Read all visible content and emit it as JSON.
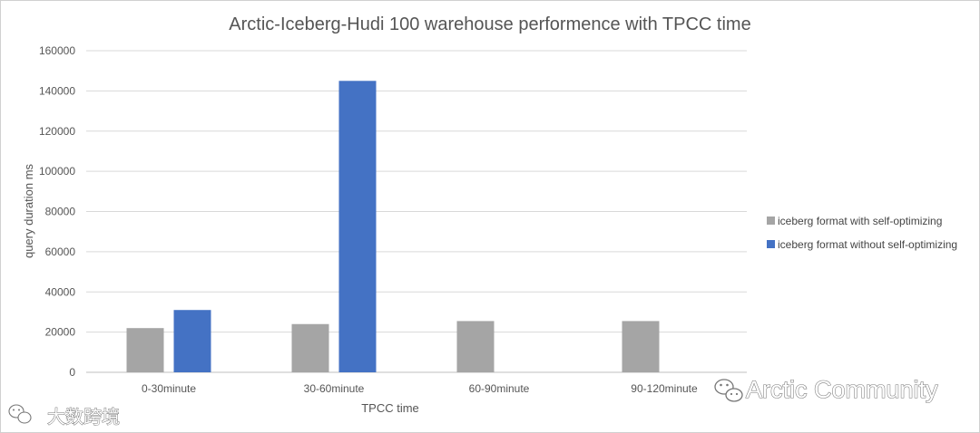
{
  "chart_data": {
    "type": "bar",
    "title": "Arctic-Iceberg-Hudi 100 warehouse performence with TPCC time",
    "xlabel": "TPCC time",
    "ylabel": "query duration ms",
    "ylim": [
      0,
      160000
    ],
    "yticks": [
      0,
      20000,
      40000,
      60000,
      80000,
      100000,
      120000,
      140000,
      160000
    ],
    "grid": true,
    "legend_position": "right",
    "categories": [
      "0-30minute",
      "30-60minute",
      "60-90minute",
      "90-120minute"
    ],
    "series": [
      {
        "name": "iceberg format with self-optimizing",
        "color": "#a5a5a5",
        "values": [
          22000,
          24000,
          25500,
          25500
        ]
      },
      {
        "name": "iceberg format without self-optimizing",
        "color": "#4472c4",
        "values": [
          31000,
          145000,
          null,
          null
        ]
      }
    ]
  },
  "watermarks": {
    "right_text": "Arctic Community",
    "left_text": "大数跨境",
    "right_icon": "wechat-icon",
    "left_icon": "wechat-icon"
  }
}
